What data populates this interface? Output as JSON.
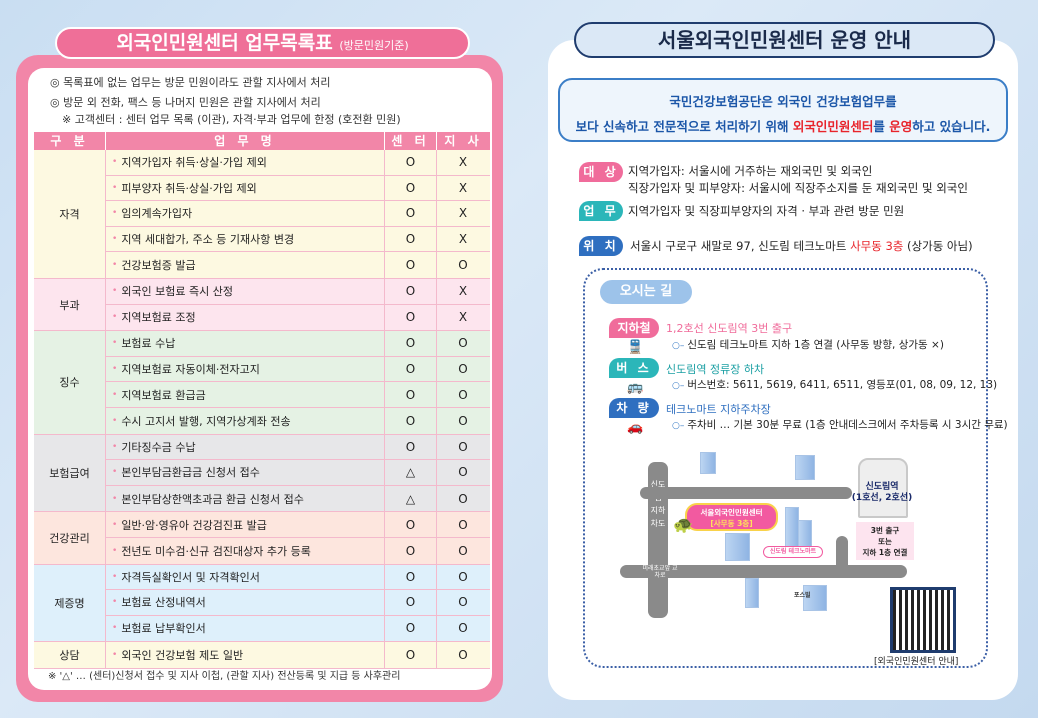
{
  "left": {
    "title": "외국인민원센터 업무목록표",
    "title_note": "(방문민원기준)",
    "notes": [
      "◎ 목록표에 없는 업무는 방문 민원이라도 관할 지사에서 처리",
      "◎ 방문 외 전화, 팩스 등 나머지 민원은 관할 지사에서 처리",
      "※ 고객센터 : 센터 업무 목록 (이관), 자격·부과 업무에 한정 (호전환 민원)"
    ],
    "headers": [
      "구 분",
      "업 무 명",
      "센 터",
      "지 사"
    ],
    "groups": [
      {
        "category": "자격",
        "color": "#fdf9e1",
        "rows": [
          [
            "지역가입자 취득·상실·가입 제외",
            "O",
            "X"
          ],
          [
            "피부양자 취득·상실·가입 제외",
            "O",
            "X"
          ],
          [
            "임의계속가입자",
            "O",
            "X"
          ],
          [
            "지역 세대합가, 주소 등 기재사항 변경",
            "O",
            "X"
          ],
          [
            "건강보험증 발급",
            "O",
            "O"
          ]
        ]
      },
      {
        "category": "부과",
        "color": "#fde5ee",
        "rows": [
          [
            "외국인 보험료 즉시 산정",
            "O",
            "X"
          ],
          [
            "지역보험료 조정",
            "O",
            "X"
          ]
        ]
      },
      {
        "category": "징수",
        "color": "#e5f2e4",
        "rows": [
          [
            "보험료 수납",
            "O",
            "O"
          ],
          [
            "지역보험료 자동이체·전자고지",
            "O",
            "O"
          ],
          [
            "지역보험료 환급금",
            "O",
            "O"
          ],
          [
            "수시 고지서 발행, 지역가상계좌 전송",
            "O",
            "O"
          ]
        ]
      },
      {
        "category": "보험급여",
        "color": "#e7e7e9",
        "rows": [
          [
            "기타징수금 수납",
            "O",
            "O"
          ],
          [
            "본인부담금환급금 신청서 접수",
            "△",
            "O"
          ],
          [
            "본인부담상한액초과금 환급 신청서 접수",
            "△",
            "O"
          ]
        ]
      },
      {
        "category": "건강관리",
        "color": "#fde6de",
        "rows": [
          [
            "일반·암·영유아 건강검진표 발급",
            "O",
            "O"
          ],
          [
            "전년도 미수검·신규 검진대상자 추가 등록",
            "O",
            "O"
          ]
        ]
      },
      {
        "category": "제증명",
        "color": "#def0fb",
        "rows": [
          [
            "자격득실확인서 및 자격확인서",
            "O",
            "O"
          ],
          [
            "보험료 산정내역서",
            "O",
            "O"
          ],
          [
            "보험료 납부확인서",
            "O",
            "O"
          ]
        ]
      },
      {
        "category": "상담",
        "color": "#fdf9e1",
        "rows": [
          [
            "외국인 건강보험 제도 일반",
            "O",
            "O"
          ]
        ]
      }
    ],
    "footnote": "※ '△' … (센터)신청서 접수 및 지사 이첩, (관할 지사) 전산등록 및 지급 등 사후관리"
  },
  "right": {
    "title": "서울외국인민원센터 운영 안내",
    "intro_line1": "국민건강보험공단은 외국인 건강보험업무를",
    "intro_line2_a": "보다 신속하고 전문적으로 처리하기 위해 ",
    "intro_line2_b": "외국인민원센터",
    "intro_line2_c": "를 ",
    "intro_line2_d": "운영",
    "intro_line2_e": "하고 있습니다.",
    "target_label": "대 상",
    "target_1": "지역가입자: 서울시에 거주하는 재외국민 및 외국인",
    "target_2": "직장가입자 및 피부양자: 서울시에 직장주소지를 둔 재외국민 및 외국인",
    "work_label": "업 무",
    "work_text": "지역가입자 및 직장피부양자의 자격 · 부과 관련 방문 민원",
    "loc_label": "위 치",
    "loc_a": "서울시 구로구 새말로 97, 신도림 테크노마트 ",
    "loc_b": "사무동 3층",
    "loc_c": " (상가동 아님)",
    "colors": {
      "pink": "#f06c9b",
      "teal": "#2bb6b9",
      "blue": "#2f6fc0",
      "red": "#e8242b"
    },
    "directions": {
      "title": "오시는 길",
      "subway_label": "지하철",
      "subway_head": "1,2호선 신도림역 3번 출구",
      "subway_sub": "신도림 테크노마트 지하 1층 연결 (사무동 방향, 상가동 ×)",
      "bus_label": "버 스",
      "bus_head": "신도림역 정류장 하차",
      "bus_sub": "버스번호: 5611, 5619, 6411, 6511, 영등포(01, 08, 09, 12, 13)",
      "car_label": "차 량",
      "car_head": "테크노마트 지하주차장",
      "car_sub": "주차비 … 기본 30분 무료 (1층 안내데스크에서 주차등록 시 3시간 무료)"
    },
    "map": {
      "road_vertical": "신도림 지하차도",
      "crossroad": "미래초교앞 교차로",
      "station": "신도림역",
      "station_lines": "(1호선, 2호선)",
      "exit_1": "3번 출구",
      "exit_2": "또는",
      "exit_3": "지하 1층 연결",
      "center_1": "서울외국인민원센터",
      "center_2": "[사무동 3층]",
      "technomart": "신도림 테크노마트",
      "posville": "포스빌",
      "qr_caption": "[외국인민원센터 안내]"
    }
  }
}
